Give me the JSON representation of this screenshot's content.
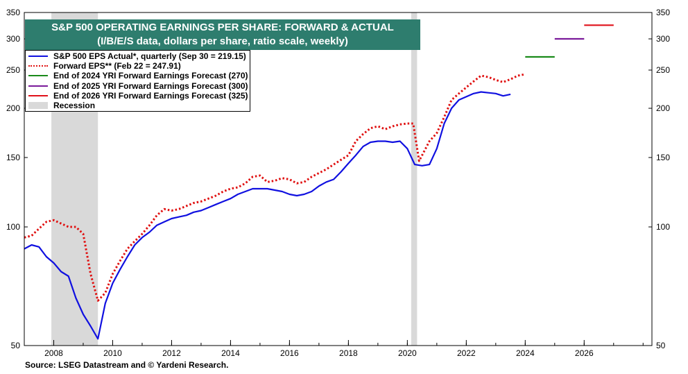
{
  "chart_data": {
    "type": "line",
    "title": "S&P 500 OPERATING EARNINGS PER SHARE: FORWARD & ACTUAL",
    "subtitle": "(I/B/E/S data, dollars per share, ratio scale, weekly)",
    "source": "Source: LSEG Datastream and © Yardeni Research.",
    "y_scale": "log",
    "ylim": [
      50,
      350
    ],
    "xlim": [
      2007.0,
      2028.3
    ],
    "y_ticks": [
      "50",
      "100",
      "150",
      "200",
      "250",
      "300",
      "350"
    ],
    "y_tick_values": [
      50,
      100,
      150,
      200,
      250,
      300,
      350
    ],
    "x_ticks": [
      "2008",
      "2010",
      "2012",
      "2014",
      "2016",
      "2018",
      "2020",
      "2022",
      "2024",
      "2026"
    ],
    "x_tick_values": [
      2008,
      2010,
      2012,
      2014,
      2016,
      2018,
      2020,
      2022,
      2024,
      2026
    ],
    "grid": false,
    "legend_position": "top-left",
    "recessions": [
      [
        2007.92,
        2009.5
      ],
      [
        2020.13,
        2020.33
      ]
    ],
    "colors": {
      "actual": "#1010e0",
      "forward": "#e01010",
      "f2024": "#1a8a1a",
      "f2025": "#7a1a9a",
      "f2026": "#e0101a",
      "recession": "#d9d9d9",
      "title_bg": "#2e7d6e"
    },
    "series": [
      {
        "name": "S&P 500 EPS Actual*, quarterly (Sep 30 = 219.15)",
        "style": "solid",
        "color": "#1010e0",
        "x": [
          2007.0,
          2007.25,
          2007.5,
          2007.75,
          2008.0,
          2008.25,
          2008.5,
          2008.75,
          2009.0,
          2009.25,
          2009.5,
          2009.75,
          2010.0,
          2010.25,
          2010.5,
          2010.75,
          2011.0,
          2011.25,
          2011.5,
          2011.75,
          2012.0,
          2012.25,
          2012.5,
          2012.75,
          2013.0,
          2013.25,
          2013.5,
          2013.75,
          2014.0,
          2014.25,
          2014.5,
          2014.75,
          2015.0,
          2015.25,
          2015.5,
          2015.75,
          2016.0,
          2016.25,
          2016.5,
          2016.75,
          2017.0,
          2017.25,
          2017.5,
          2017.75,
          2018.0,
          2018.25,
          2018.5,
          2018.75,
          2019.0,
          2019.25,
          2019.5,
          2019.75,
          2020.0,
          2020.25,
          2020.5,
          2020.75,
          2021.0,
          2021.25,
          2021.5,
          2021.75,
          2022.0,
          2022.25,
          2022.5,
          2022.75,
          2023.0,
          2023.25,
          2023.5
        ],
        "y": [
          88,
          90,
          89,
          84,
          81,
          77,
          75,
          66,
          60,
          56,
          52,
          64,
          72,
          78,
          84,
          90,
          94,
          97,
          101,
          103,
          105,
          106,
          107,
          109,
          110,
          112,
          114,
          116,
          118,
          121,
          123,
          125,
          125,
          125,
          124,
          123,
          121,
          120,
          121,
          123,
          127,
          130,
          132,
          138,
          145,
          152,
          160,
          164,
          165,
          165,
          164,
          165,
          158,
          144,
          143,
          144,
          158,
          183,
          200,
          210,
          214,
          218,
          220,
          219,
          218,
          215,
          217
        ]
      },
      {
        "name": "Forward EPS** (Feb 22 = 247.91)",
        "style": "dotted",
        "color": "#e01010",
        "x": [
          2007.0,
          2007.25,
          2007.5,
          2007.75,
          2008.0,
          2008.25,
          2008.5,
          2008.75,
          2009.0,
          2009.25,
          2009.5,
          2009.75,
          2010.0,
          2010.25,
          2010.5,
          2010.75,
          2011.0,
          2011.25,
          2011.5,
          2011.75,
          2012.0,
          2012.25,
          2012.5,
          2012.75,
          2013.0,
          2013.25,
          2013.5,
          2013.75,
          2014.0,
          2014.25,
          2014.5,
          2014.75,
          2015.0,
          2015.25,
          2015.5,
          2015.75,
          2016.0,
          2016.25,
          2016.5,
          2016.75,
          2017.0,
          2017.25,
          2017.5,
          2017.75,
          2018.0,
          2018.25,
          2018.5,
          2018.75,
          2019.0,
          2019.25,
          2019.5,
          2019.75,
          2020.0,
          2020.2,
          2020.4,
          2020.6,
          2020.75,
          2021.0,
          2021.25,
          2021.5,
          2021.75,
          2022.0,
          2022.25,
          2022.5,
          2022.75,
          2023.0,
          2023.25,
          2023.5,
          2023.75,
          2024.0
        ],
        "y": [
          94,
          95,
          99,
          103,
          104,
          102,
          100,
          100,
          96,
          76,
          65,
          68,
          76,
          82,
          88,
          92,
          96,
          101,
          107,
          111,
          110,
          111,
          113,
          115,
          116,
          118,
          120,
          123,
          125,
          126,
          129,
          134,
          135,
          130,
          131,
          133,
          132,
          129,
          130,
          134,
          137,
          140,
          144,
          148,
          152,
          165,
          172,
          178,
          180,
          177,
          180,
          182,
          183,
          183,
          147,
          157,
          165,
          173,
          190,
          210,
          218,
          226,
          234,
          242,
          240,
          236,
          233,
          237,
          242,
          244
        ]
      },
      {
        "name": "End of 2024 YRI Forward Earnings Forecast (270)",
        "style": "solid",
        "color": "#1a8a1a",
        "x": [
          2024.0,
          2025.0
        ],
        "y": [
          270,
          270
        ]
      },
      {
        "name": "End of 2025 YRI Forward Earnings Forecast (300)",
        "style": "solid",
        "color": "#7a1a9a",
        "x": [
          2025.0,
          2026.0
        ],
        "y": [
          300,
          300
        ]
      },
      {
        "name": "End of 2026 YRI Forward Earnings Forecast (325)",
        "style": "solid",
        "color": "#e0101a",
        "x": [
          2026.0,
          2027.0
        ],
        "y": [
          325,
          325
        ]
      }
    ],
    "recession_label": "Recession"
  }
}
